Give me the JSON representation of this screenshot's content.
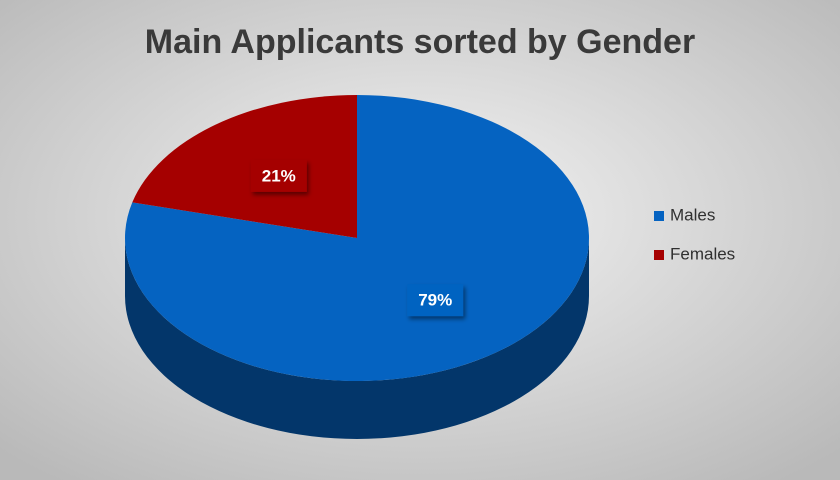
{
  "chart_data": {
    "type": "pie",
    "title": "Main Applicants sorted by Gender",
    "categories": [
      "Males",
      "Females"
    ],
    "values": [
      79,
      21
    ],
    "value_labels": [
      "79%",
      "21%"
    ],
    "colors": [
      "#0563c1",
      "#a50000"
    ],
    "legend": "right"
  }
}
